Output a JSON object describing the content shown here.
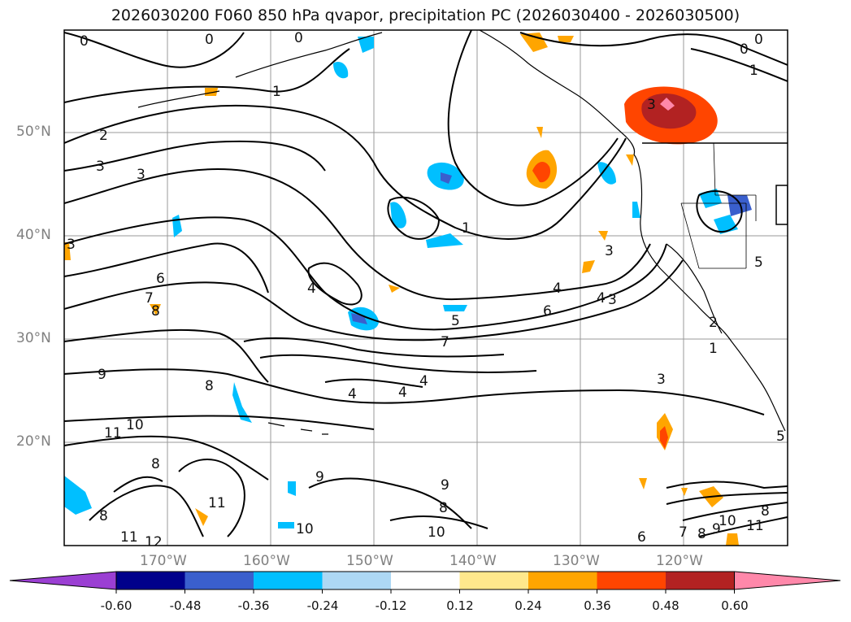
{
  "title": "2026030200 F060 850 hPa qvapor, precipitation PC (2026030400 - 2026030500)",
  "axes": {
    "lat_labels": [
      "50°N",
      "40°N",
      "30°N",
      "20°N"
    ],
    "lon_labels": [
      "170°W",
      "160°W",
      "150°W",
      "140°W",
      "130°W",
      "120°W"
    ]
  },
  "colorbar": {
    "ticks": [
      "-0.60",
      "-0.48",
      "-0.36",
      "-0.24",
      "-0.12",
      "0.12",
      "0.24",
      "0.36",
      "0.48",
      "0.60"
    ],
    "colors": [
      "#9b3fd3",
      "#00008b",
      "#3a5fcd",
      "#00bfff",
      "#add8f4",
      "#ffffff",
      "#ffe88c",
      "#ffa500",
      "#ff4500",
      "#b22222",
      "#ff88aa"
    ]
  },
  "contour_labels": [
    "0",
    "0",
    "0",
    "0",
    "0",
    "1",
    "1",
    "2",
    "3",
    "3",
    "3",
    "6",
    "7",
    "8",
    "4",
    "1",
    "3",
    "4",
    "3",
    "4",
    "5",
    "6",
    "7",
    "5",
    "4",
    "4",
    "4",
    "9",
    "8",
    "10",
    "11",
    "9",
    "8",
    "8",
    "11",
    "11",
    "12",
    "9",
    "8",
    "10",
    "10",
    "3",
    "2",
    "1",
    "5",
    "6",
    "7",
    "8",
    "9",
    "10",
    "11",
    "8",
    "3"
  ],
  "shading_levels": {
    "neg": [
      "-0.60",
      "-0.48",
      "-0.36",
      "-0.24",
      "-0.12"
    ],
    "pos": [
      "0.12",
      "0.24",
      "0.36",
      "0.48",
      "0.60"
    ]
  }
}
